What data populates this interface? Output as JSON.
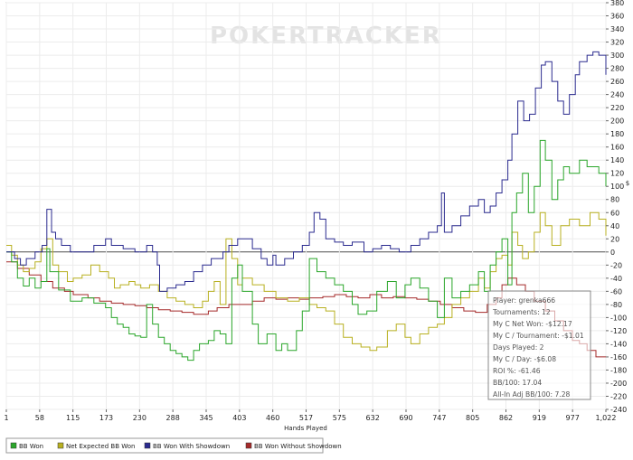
{
  "chart_data": {
    "type": "line",
    "watermark": {
      "part1": "POKER",
      "part2": "TRACKER"
    },
    "xlabel": "Hands Played",
    "ylabel": "$",
    "x_ticks": [
      "1",
      "58",
      "115",
      "173",
      "230",
      "288",
      "345",
      "403",
      "460",
      "517",
      "575",
      "632",
      "690",
      "747",
      "805",
      "862",
      "919",
      "977",
      "1,022"
    ],
    "y_ticks": [
      380,
      360,
      340,
      320,
      300,
      280,
      260,
      240,
      220,
      200,
      180,
      160,
      140,
      120,
      100,
      80,
      60,
      40,
      20,
      0,
      -20,
      -40,
      -60,
      -80,
      -100,
      -120,
      -140,
      -160,
      -180,
      -200,
      -220,
      -240
    ],
    "xlim": [
      1,
      1022
    ],
    "ylim": [
      -240,
      380
    ],
    "colors": {
      "bb_won": "#2aa62a",
      "net_expected": "#b8b020",
      "with_showdown": "#2b2b8f",
      "without_showdown": "#a52a2a"
    },
    "series": [
      {
        "key": "bb_won",
        "name": "BB Won",
        "color": "#2aa62a",
        "points": [
          [
            1,
            0
          ],
          [
            10,
            -15
          ],
          [
            20,
            -40
          ],
          [
            30,
            -52
          ],
          [
            40,
            -40
          ],
          [
            50,
            -55
          ],
          [
            60,
            -45
          ],
          [
            70,
            5
          ],
          [
            75,
            -30
          ],
          [
            90,
            -58
          ],
          [
            110,
            -75
          ],
          [
            130,
            -70
          ],
          [
            150,
            -78
          ],
          [
            170,
            -85
          ],
          [
            180,
            -100
          ],
          [
            190,
            -110
          ],
          [
            200,
            -115
          ],
          [
            210,
            -125
          ],
          [
            220,
            -128
          ],
          [
            230,
            -130
          ],
          [
            240,
            -80
          ],
          [
            250,
            -110
          ],
          [
            260,
            -130
          ],
          [
            270,
            -140
          ],
          [
            280,
            -150
          ],
          [
            290,
            -155
          ],
          [
            300,
            -160
          ],
          [
            310,
            -165
          ],
          [
            320,
            -150
          ],
          [
            330,
            -140
          ],
          [
            345,
            -135
          ],
          [
            355,
            -120
          ],
          [
            365,
            -125
          ],
          [
            375,
            -140
          ],
          [
            385,
            -40
          ],
          [
            395,
            -20
          ],
          [
            403,
            -60
          ],
          [
            420,
            -110
          ],
          [
            430,
            -140
          ],
          [
            445,
            -125
          ],
          [
            460,
            -150
          ],
          [
            470,
            -140
          ],
          [
            480,
            -150
          ],
          [
            495,
            -120
          ],
          [
            505,
            -90
          ],
          [
            517,
            -10
          ],
          [
            530,
            -30
          ],
          [
            545,
            -40
          ],
          [
            560,
            -50
          ],
          [
            575,
            -60
          ],
          [
            590,
            -80
          ],
          [
            600,
            -95
          ],
          [
            615,
            -90
          ],
          [
            632,
            -60
          ],
          [
            650,
            -45
          ],
          [
            665,
            -70
          ],
          [
            680,
            -50
          ],
          [
            690,
            -40
          ],
          [
            705,
            -55
          ],
          [
            720,
            -75
          ],
          [
            735,
            -100
          ],
          [
            747,
            -40
          ],
          [
            760,
            -70
          ],
          [
            775,
            -60
          ],
          [
            790,
            -50
          ],
          [
            805,
            -30
          ],
          [
            815,
            -60
          ],
          [
            825,
            -20
          ],
          [
            835,
            0
          ],
          [
            845,
            20
          ],
          [
            855,
            -50
          ],
          [
            862,
            60
          ],
          [
            870,
            90
          ],
          [
            880,
            120
          ],
          [
            890,
            60
          ],
          [
            900,
            100
          ],
          [
            910,
            170
          ],
          [
            919,
            140
          ],
          [
            930,
            80
          ],
          [
            940,
            110
          ],
          [
            950,
            130
          ],
          [
            960,
            120
          ],
          [
            977,
            140
          ],
          [
            990,
            130
          ],
          [
            1000,
            130
          ],
          [
            1010,
            120
          ],
          [
            1022,
            100
          ]
        ]
      },
      {
        "key": "net_expected",
        "name": "Net Expected BB Won",
        "color": "#b8b020",
        "points": [
          [
            1,
            10
          ],
          [
            10,
            -5
          ],
          [
            20,
            -20
          ],
          [
            30,
            -30
          ],
          [
            40,
            -25
          ],
          [
            50,
            -15
          ],
          [
            60,
            5
          ],
          [
            70,
            20
          ],
          [
            80,
            -20
          ],
          [
            90,
            -30
          ],
          [
            105,
            -45
          ],
          [
            115,
            -40
          ],
          [
            130,
            -35
          ],
          [
            145,
            -20
          ],
          [
            160,
            -30
          ],
          [
            175,
            -40
          ],
          [
            185,
            -55
          ],
          [
            195,
            -50
          ],
          [
            210,
            -45
          ],
          [
            220,
            -50
          ],
          [
            230,
            -55
          ],
          [
            245,
            -50
          ],
          [
            260,
            -60
          ],
          [
            275,
            -70
          ],
          [
            290,
            -75
          ],
          [
            305,
            -80
          ],
          [
            320,
            -85
          ],
          [
            335,
            -75
          ],
          [
            345,
            -60
          ],
          [
            355,
            -45
          ],
          [
            365,
            -80
          ],
          [
            375,
            20
          ],
          [
            385,
            -10
          ],
          [
            395,
            -50
          ],
          [
            403,
            -40
          ],
          [
            420,
            -50
          ],
          [
            440,
            -60
          ],
          [
            460,
            -70
          ],
          [
            480,
            -75
          ],
          [
            500,
            -70
          ],
          [
            517,
            -80
          ],
          [
            530,
            -85
          ],
          [
            545,
            -90
          ],
          [
            560,
            -110
          ],
          [
            575,
            -130
          ],
          [
            590,
            -140
          ],
          [
            605,
            -145
          ],
          [
            620,
            -150
          ],
          [
            632,
            -145
          ],
          [
            650,
            -120
          ],
          [
            665,
            -110
          ],
          [
            680,
            -130
          ],
          [
            690,
            -140
          ],
          [
            705,
            -125
          ],
          [
            720,
            -115
          ],
          [
            735,
            -110
          ],
          [
            747,
            -100
          ],
          [
            760,
            -80
          ],
          [
            775,
            -70
          ],
          [
            790,
            -60
          ],
          [
            805,
            -40
          ],
          [
            815,
            -55
          ],
          [
            825,
            -30
          ],
          [
            835,
            -10
          ],
          [
            845,
            -5
          ],
          [
            855,
            -20
          ],
          [
            862,
            30
          ],
          [
            872,
            10
          ],
          [
            880,
            -10
          ],
          [
            890,
            0
          ],
          [
            900,
            30
          ],
          [
            910,
            60
          ],
          [
            919,
            40
          ],
          [
            930,
            10
          ],
          [
            945,
            40
          ],
          [
            960,
            50
          ],
          [
            977,
            40
          ],
          [
            995,
            60
          ],
          [
            1010,
            50
          ],
          [
            1022,
            25
          ]
        ]
      },
      {
        "key": "with_showdown",
        "name": "BB Won With Showdown",
        "color": "#2b2b8f",
        "points": [
          [
            1,
            0
          ],
          [
            15,
            -10
          ],
          [
            25,
            -20
          ],
          [
            35,
            -10
          ],
          [
            50,
            0
          ],
          [
            58,
            0
          ],
          [
            62,
            10
          ],
          [
            70,
            65
          ],
          [
            78,
            30
          ],
          [
            85,
            20
          ],
          [
            95,
            10
          ],
          [
            110,
            0
          ],
          [
            130,
            0
          ],
          [
            150,
            10
          ],
          [
            170,
            20
          ],
          [
            180,
            10
          ],
          [
            200,
            5
          ],
          [
            220,
            0
          ],
          [
            240,
            10
          ],
          [
            250,
            0
          ],
          [
            258,
            -20
          ],
          [
            262,
            -60
          ],
          [
            275,
            -55
          ],
          [
            290,
            -50
          ],
          [
            305,
            -45
          ],
          [
            320,
            -30
          ],
          [
            335,
            -20
          ],
          [
            350,
            -10
          ],
          [
            370,
            0
          ],
          [
            380,
            10
          ],
          [
            395,
            20
          ],
          [
            403,
            20
          ],
          [
            420,
            5
          ],
          [
            435,
            -10
          ],
          [
            445,
            -20
          ],
          [
            455,
            -5
          ],
          [
            460,
            -20
          ],
          [
            475,
            -10
          ],
          [
            490,
            0
          ],
          [
            505,
            10
          ],
          [
            517,
            30
          ],
          [
            525,
            60
          ],
          [
            535,
            50
          ],
          [
            545,
            20
          ],
          [
            560,
            15
          ],
          [
            575,
            10
          ],
          [
            590,
            15
          ],
          [
            610,
            0
          ],
          [
            625,
            5
          ],
          [
            640,
            10
          ],
          [
            655,
            5
          ],
          [
            670,
            0
          ],
          [
            690,
            10
          ],
          [
            705,
            20
          ],
          [
            720,
            30
          ],
          [
            735,
            40
          ],
          [
            742,
            90
          ],
          [
            747,
            30
          ],
          [
            760,
            40
          ],
          [
            775,
            55
          ],
          [
            790,
            70
          ],
          [
            805,
            80
          ],
          [
            815,
            60
          ],
          [
            825,
            70
          ],
          [
            835,
            90
          ],
          [
            845,
            110
          ],
          [
            855,
            140
          ],
          [
            862,
            180
          ],
          [
            872,
            230
          ],
          [
            882,
            200
          ],
          [
            892,
            210
          ],
          [
            902,
            250
          ],
          [
            912,
            285
          ],
          [
            919,
            290
          ],
          [
            930,
            260
          ],
          [
            940,
            230
          ],
          [
            950,
            210
          ],
          [
            960,
            240
          ],
          [
            970,
            270
          ],
          [
            977,
            290
          ],
          [
            990,
            300
          ],
          [
            1000,
            305
          ],
          [
            1010,
            300
          ],
          [
            1015,
            300
          ],
          [
            1022,
            270
          ]
        ]
      },
      {
        "key": "without_showdown",
        "name": "BB Won Without Showdown",
        "color": "#a52a2a",
        "points": [
          [
            1,
            -15
          ],
          [
            20,
            -25
          ],
          [
            40,
            -35
          ],
          [
            60,
            -45
          ],
          [
            80,
            -55
          ],
          [
            100,
            -60
          ],
          [
            115,
            -65
          ],
          [
            140,
            -70
          ],
          [
            160,
            -75
          ],
          [
            180,
            -78
          ],
          [
            200,
            -80
          ],
          [
            220,
            -82
          ],
          [
            240,
            -85
          ],
          [
            260,
            -88
          ],
          [
            280,
            -90
          ],
          [
            300,
            -92
          ],
          [
            320,
            -95
          ],
          [
            345,
            -90
          ],
          [
            360,
            -85
          ],
          [
            380,
            -80
          ],
          [
            403,
            -80
          ],
          [
            420,
            -75
          ],
          [
            440,
            -70
          ],
          [
            460,
            -72
          ],
          [
            480,
            -70
          ],
          [
            500,
            -72
          ],
          [
            517,
            -70
          ],
          [
            540,
            -68
          ],
          [
            560,
            -65
          ],
          [
            580,
            -68
          ],
          [
            600,
            -70
          ],
          [
            620,
            -65
          ],
          [
            640,
            -70
          ],
          [
            660,
            -68
          ],
          [
            680,
            -70
          ],
          [
            700,
            -72
          ],
          [
            720,
            -75
          ],
          [
            740,
            -80
          ],
          [
            760,
            -85
          ],
          [
            780,
            -90
          ],
          [
            800,
            -92
          ],
          [
            820,
            -80
          ],
          [
            835,
            -70
          ],
          [
            845,
            -50
          ],
          [
            855,
            -40
          ],
          [
            870,
            -50
          ],
          [
            885,
            -60
          ],
          [
            900,
            -75
          ],
          [
            919,
            -90
          ],
          [
            935,
            -105
          ],
          [
            950,
            -120
          ],
          [
            965,
            -135
          ],
          [
            977,
            -140
          ],
          [
            990,
            -150
          ],
          [
            1005,
            -160
          ],
          [
            1022,
            -160
          ]
        ]
      }
    ],
    "stats_box": [
      "Player: grenka666",
      "Tournaments: 12",
      "My C Net Won: -$12.17",
      "My C / Tournament: -$1.01",
      "Days Played: 2",
      "My C / Day: -$6.08",
      "ROI %: -61.46",
      "BB/100: 17.04",
      "All-In Adj BB/100: 7.28"
    ],
    "legend": [
      "BB Won",
      "Net Expected BB Won",
      "BB Won With Showdown",
      "BB Won Without Showdown"
    ]
  }
}
